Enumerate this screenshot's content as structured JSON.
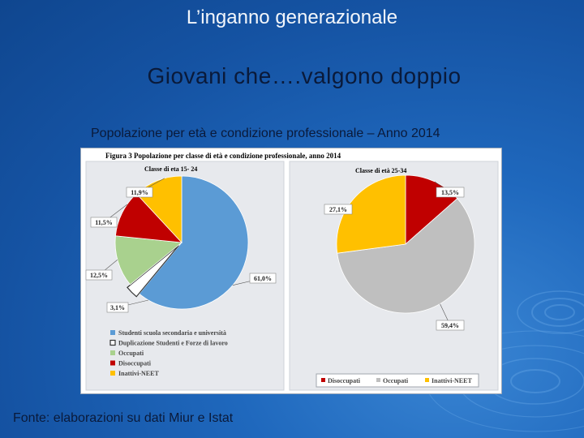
{
  "slide": {
    "title": "L’inganno generazionale",
    "subtitle": "Giovani che….valgono doppio",
    "caption": "Popolazione per età e condizione professionale – Anno 2014",
    "source": "Fonte: elaborazioni su dati Miur e Istat"
  },
  "colors": {
    "studenti": "#5b9bd5",
    "duplicazione": "#ffffff",
    "occupati_young": "#a9d18e",
    "disoccupati": "#c00000",
    "inattivi": "#ffc000",
    "occupati_adult": "#bfbfbf",
    "figure_title": "#7f3f1f"
  },
  "chart_data": [
    {
      "type": "pie",
      "figure_title": "Figura 3 Popolazione per classe di età e condizione professionale, anno 2014",
      "title": "Classe di eta 15- 24",
      "slices": [
        {
          "label": "Studenti scuola secondaria e università",
          "value": 61.0,
          "value_label": "61,0%",
          "color": "#5b9bd5"
        },
        {
          "label": "Duplicazione Studenti e Forze di lavoro",
          "value": 3.1,
          "value_label": "3,1%",
          "color": "#ffffff"
        },
        {
          "label": "Occupati",
          "value": 12.5,
          "value_label": "12,5%",
          "color": "#a9d18e"
        },
        {
          "label": "Disoccupati",
          "value": 11.5,
          "value_label": "11,5%",
          "color": "#c00000"
        },
        {
          "label": "Inattivi-NEET",
          "value": 11.9,
          "value_label": "11,9%",
          "color": "#ffc000"
        }
      ],
      "legend": [
        "Studenti scuola secondaria e università",
        "Duplicazione Studenti e Forze di lavoro",
        "Occupati",
        "Disoccupati",
        "Inattivi-NEET"
      ],
      "legend_position": "bottom-left"
    },
    {
      "type": "pie",
      "title": "Classe di età 25-34",
      "slices": [
        {
          "label": "Disoccupati",
          "value": 13.5,
          "value_label": "13,5%",
          "color": "#c00000"
        },
        {
          "label": "Occupati",
          "value": 59.4,
          "value_label": "59,4%",
          "color": "#bfbfbf"
        },
        {
          "label": "Inattivi-NEET",
          "value": 27.1,
          "value_label": "27,1%",
          "color": "#ffc000"
        }
      ],
      "legend": [
        "Disoccupati",
        "Occupati",
        "Inattivi-NEET"
      ],
      "legend_position": "bottom"
    }
  ]
}
